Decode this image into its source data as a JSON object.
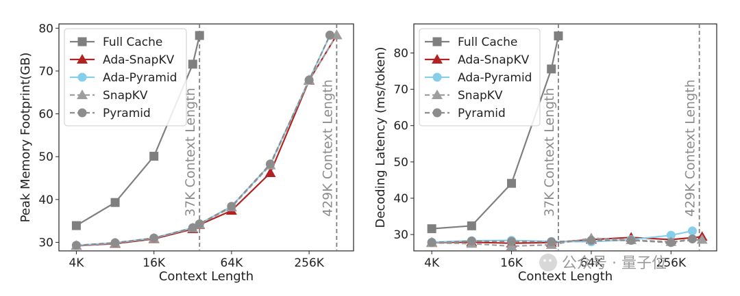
{
  "chart_data": [
    {
      "type": "line",
      "ylabel": "Peak Memory Footprint(GB)",
      "xlabel": "Context Length",
      "x_scale": "log2",
      "xlim": [
        3000,
        580000
      ],
      "ylim": [
        28,
        81
      ],
      "xticks": [
        {
          "value": 4096,
          "label": "4K"
        },
        {
          "value": 16384,
          "label": "16K"
        },
        {
          "value": 65536,
          "label": "64K"
        },
        {
          "value": 262144,
          "label": "256K"
        }
      ],
      "yticks": [
        30,
        40,
        50,
        60,
        70,
        80
      ],
      "vlines": [
        {
          "value": 37000,
          "label": "37K Context Length"
        },
        {
          "value": 429000,
          "label": "429K Context Length"
        }
      ],
      "series": [
        {
          "name": "Full Cache",
          "color": "#7f7f7f",
          "marker": "square",
          "dash": "solid",
          "x": [
            4096,
            8192,
            16384,
            32768,
            37000
          ],
          "y": [
            33.9,
            39.3,
            50.1,
            71.6,
            78.3
          ]
        },
        {
          "name": "Ada-SnapKV",
          "color": "#b22222",
          "marker": "triangle",
          "dash": "solid",
          "x": [
            4096,
            8192,
            16384,
            32768,
            37000,
            65536,
            131072,
            262144,
            429000
          ],
          "y": [
            29.2,
            29.7,
            30.8,
            33.1,
            34.1,
            37.4,
            46.2,
            67.8,
            78.4
          ]
        },
        {
          "name": "Ada-Pyramid",
          "color": "#87ceeb",
          "marker": "circle",
          "dash": "solid",
          "x": [
            4096,
            8192,
            16384,
            32768,
            37000,
            65536,
            131072,
            262144,
            380000
          ],
          "y": [
            29.3,
            29.9,
            31.0,
            33.4,
            34.3,
            38.4,
            48.2,
            67.9,
            78.3
          ]
        },
        {
          "name": "SnapKV",
          "color": "#9e9e9e",
          "marker": "triangle",
          "dash": "dashed",
          "x": [
            4096,
            8192,
            16384,
            32768,
            37000,
            65536,
            131072,
            262144,
            429000
          ],
          "y": [
            29.2,
            29.8,
            30.9,
            33.3,
            34.2,
            38.2,
            48.0,
            67.9,
            78.4
          ]
        },
        {
          "name": "Pyramid",
          "color": "#8c8c8c",
          "marker": "circle",
          "dash": "dashed",
          "x": [
            4096,
            8192,
            16384,
            32768,
            37000,
            65536,
            131072,
            262144,
            380000
          ],
          "y": [
            29.3,
            29.9,
            31.0,
            33.4,
            34.3,
            38.4,
            48.3,
            67.9,
            78.4
          ]
        }
      ]
    },
    {
      "type": "line",
      "ylabel": "Decoding Latency (ms/token)",
      "xlabel": "Context Length",
      "x_scale": "log2",
      "xlim": [
        3000,
        580000
      ],
      "ylim": [
        25.5,
        88
      ],
      "xticks": [
        {
          "value": 4096,
          "label": "4K"
        },
        {
          "value": 16384,
          "label": "16K"
        },
        {
          "value": 65536,
          "label": "64K"
        },
        {
          "value": 262144,
          "label": "256K"
        }
      ],
      "yticks": [
        30,
        40,
        50,
        60,
        70,
        80
      ],
      "vlines": [
        {
          "value": 37000,
          "label": "37K Context Length"
        },
        {
          "value": 429000,
          "label": "429K Context Length"
        }
      ],
      "series": [
        {
          "name": "Full Cache",
          "color": "#7f7f7f",
          "marker": "square",
          "dash": "solid",
          "x": [
            4096,
            8192,
            16384,
            32768,
            37000
          ],
          "y": [
            31.6,
            32.4,
            44.1,
            75.6,
            84.7
          ]
        },
        {
          "name": "Ada-SnapKV",
          "color": "#b22222",
          "marker": "triangle",
          "dash": "solid",
          "x": [
            4096,
            8192,
            16384,
            32768,
            65536,
            131072,
            262144,
            450000
          ],
          "y": [
            27.8,
            27.9,
            27.6,
            27.8,
            28.6,
            29.2,
            28.6,
            29.4
          ]
        },
        {
          "name": "Ada-Pyramid",
          "color": "#87ceeb",
          "marker": "circle",
          "dash": "solid",
          "x": [
            4096,
            8192,
            16384,
            32768,
            65536,
            131072,
            262144,
            380000
          ],
          "y": [
            27.9,
            28.3,
            28.4,
            28.1,
            28.0,
            28.6,
            29.8,
            31.0
          ]
        },
        {
          "name": "SnapKV",
          "color": "#9e9e9e",
          "marker": "triangle",
          "dash": "dashed",
          "x": [
            4096,
            8192,
            16384,
            32768,
            65536,
            131072,
            262144,
            450000
          ],
          "y": [
            27.7,
            27.5,
            26.8,
            27.2,
            29.0,
            28.5,
            28.0,
            28.6
          ]
        },
        {
          "name": "Pyramid",
          "color": "#8c8c8c",
          "marker": "circle",
          "dash": "dashed",
          "x": [
            4096,
            8192,
            16384,
            32768,
            65536,
            131072,
            262144,
            380000
          ],
          "y": [
            27.8,
            28.2,
            28.1,
            28.0,
            28.4,
            28.4,
            27.8,
            28.8
          ]
        }
      ]
    }
  ],
  "watermark": "公众号 · 量子位"
}
